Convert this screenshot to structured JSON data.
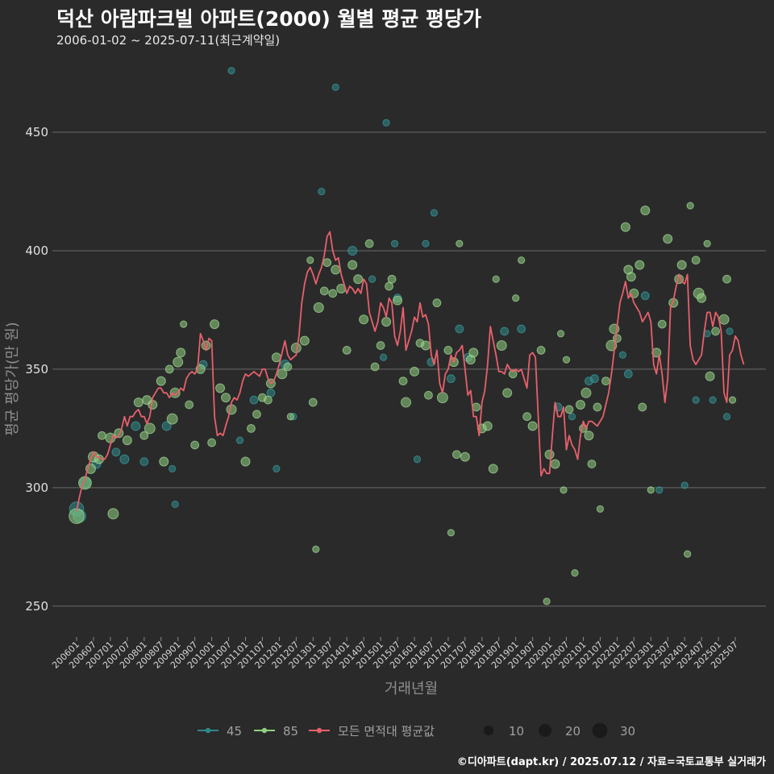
{
  "title": "덕산 아람파크빌 아파트(2000) 월별 평균 평당가",
  "subtitle": "2006-01-02 ~ 2025-07-11(최근계약일)",
  "caption": "©디아파트(dapt.kr) / 2025.07.12 / 자료=국토교통부 실거래가",
  "colors": {
    "background": "#2a2a2b",
    "series_45": "#2f8a8a",
    "series_85": "#8fd17f",
    "mean_line": "#e8606a",
    "size_legend": "#1a1a1a"
  },
  "chart_data": {
    "type": "scatter",
    "xlabel": "거래년월",
    "ylabel": "평균 평당가(만 원)",
    "ylim": [
      237,
      482
    ],
    "yticks": [
      250,
      300,
      350,
      400,
      450
    ],
    "x_range": [
      "2006-01",
      "2025-07"
    ],
    "xtick_labels": [
      "200601",
      "200607",
      "200701",
      "200707",
      "200801",
      "200807",
      "200901",
      "200907",
      "201001",
      "201007",
      "201101",
      "201107",
      "201201",
      "201207",
      "201301",
      "201307",
      "201401",
      "201407",
      "201501",
      "201507",
      "201601",
      "201607",
      "201701",
      "201707",
      "201801",
      "201807",
      "201901",
      "201907",
      "202001",
      "202007",
      "202101",
      "202107",
      "202201",
      "202207",
      "202301",
      "202307",
      "202401",
      "202407",
      "202501",
      "202507"
    ],
    "legend": {
      "series": [
        {
          "name": "45",
          "color": "#2f8a8a"
        },
        {
          "name": "85",
          "color": "#8fd17f"
        },
        {
          "name": "모든 면적대 평균값",
          "color": "#e8606a"
        }
      ],
      "sizes": [
        10,
        20,
        30
      ]
    },
    "mean_line": {
      "name": "모든 면적대 평균값",
      "start": "2006-01",
      "values": [
        290,
        296,
        301,
        304,
        308,
        312,
        315,
        313,
        313,
        312,
        312,
        314,
        318,
        322,
        321,
        322,
        325,
        330,
        326,
        330,
        330,
        332,
        333,
        330,
        330,
        327,
        330,
        338,
        340,
        342,
        342,
        340,
        340,
        338,
        340,
        339,
        340,
        342,
        341,
        346,
        348,
        349,
        348,
        350,
        365,
        362,
        358,
        363,
        362,
        330,
        322,
        323,
        322,
        326,
        330,
        336,
        338,
        337,
        340,
        345,
        348,
        347,
        348,
        349,
        348,
        347,
        350,
        350,
        346,
        344,
        345,
        348,
        352,
        357,
        362,
        356,
        354,
        355,
        356,
        364,
        378,
        386,
        391,
        393,
        390,
        386,
        390,
        393,
        398,
        406,
        408,
        400,
        396,
        397,
        390,
        386,
        382,
        385,
        384,
        382,
        384,
        382,
        388,
        386,
        374,
        370,
        366,
        370,
        378,
        376,
        372,
        380,
        378,
        364,
        360,
        366,
        376,
        358,
        362,
        366,
        372,
        370,
        378,
        372,
        373,
        369,
        356,
        352,
        358,
        344,
        340,
        348,
        350,
        356,
        353,
        357,
        358,
        360,
        350,
        339,
        341,
        330,
        330,
        322,
        336,
        341,
        352,
        368,
        362,
        356,
        349,
        349,
        348,
        352,
        350,
        349,
        350,
        349,
        350,
        346,
        342,
        356,
        357,
        355,
        330,
        305,
        308,
        306,
        306,
        322,
        336,
        330,
        330,
        334,
        316,
        322,
        318,
        316,
        312,
        322,
        328,
        325,
        328,
        328,
        327,
        326,
        328,
        330,
        335,
        340,
        348,
        358,
        368,
        378,
        382,
        387,
        380,
        382,
        378,
        376,
        374,
        370,
        372,
        374,
        370,
        352,
        348,
        356,
        348,
        336,
        346,
        376,
        379,
        385,
        390,
        387,
        386,
        390,
        360,
        354,
        352,
        354,
        356,
        366,
        374,
        374,
        368,
        374,
        372,
        366,
        340,
        336,
        356,
        358,
        364,
        362,
        356,
        352
      ]
    },
    "points_45": [
      {
        "x": "2006-01",
        "y": 291,
        "n": 12
      },
      {
        "x": "2006-02",
        "y": 288,
        "n": 9
      },
      {
        "x": "2006-04",
        "y": 302,
        "n": 5
      },
      {
        "x": "2006-08",
        "y": 310,
        "n": 3
      },
      {
        "x": "2007-03",
        "y": 315,
        "n": 2
      },
      {
        "x": "2007-06",
        "y": 312,
        "n": 3
      },
      {
        "x": "2007-10",
        "y": 326,
        "n": 3
      },
      {
        "x": "2008-01",
        "y": 311,
        "n": 2
      },
      {
        "x": "2008-09",
        "y": 326,
        "n": 3
      },
      {
        "x": "2008-11",
        "y": 308,
        "n": 1
      },
      {
        "x": "2008-12",
        "y": 293,
        "n": 1
      },
      {
        "x": "2009-10",
        "y": 352,
        "n": 2
      },
      {
        "x": "2010-08",
        "y": 476,
        "n": 1
      },
      {
        "x": "2010-11",
        "y": 320,
        "n": 1
      },
      {
        "x": "2011-04",
        "y": 337,
        "n": 2
      },
      {
        "x": "2011-10",
        "y": 340,
        "n": 2
      },
      {
        "x": "2011-12",
        "y": 308,
        "n": 1
      },
      {
        "x": "2012-03",
        "y": 352,
        "n": 3
      },
      {
        "x": "2012-06",
        "y": 330,
        "n": 1
      },
      {
        "x": "2013-04",
        "y": 425,
        "n": 1
      },
      {
        "x": "2013-09",
        "y": 469,
        "n": 1
      },
      {
        "x": "2014-03",
        "y": 400,
        "n": 3
      },
      {
        "x": "2014-10",
        "y": 388,
        "n": 1
      },
      {
        "x": "2015-02",
        "y": 355,
        "n": 1
      },
      {
        "x": "2015-03",
        "y": 454,
        "n": 1
      },
      {
        "x": "2015-06",
        "y": 403,
        "n": 1
      },
      {
        "x": "2015-07",
        "y": 380,
        "n": 2
      },
      {
        "x": "2016-02",
        "y": 312,
        "n": 1
      },
      {
        "x": "2016-05",
        "y": 403,
        "n": 1
      },
      {
        "x": "2016-07",
        "y": 353,
        "n": 2
      },
      {
        "x": "2016-08",
        "y": 416,
        "n": 1
      },
      {
        "x": "2017-02",
        "y": 346,
        "n": 2
      },
      {
        "x": "2017-05",
        "y": 367,
        "n": 2
      },
      {
        "x": "2017-08",
        "y": 355,
        "n": 2
      },
      {
        "x": "2018-09",
        "y": 366,
        "n": 2
      },
      {
        "x": "2019-03",
        "y": 367,
        "n": 2
      },
      {
        "x": "2020-04",
        "y": 334,
        "n": 2
      },
      {
        "x": "2020-09",
        "y": 330,
        "n": 1
      },
      {
        "x": "2021-03",
        "y": 345,
        "n": 2
      },
      {
        "x": "2021-05",
        "y": 346,
        "n": 2
      },
      {
        "x": "2022-03",
        "y": 356,
        "n": 1
      },
      {
        "x": "2022-05",
        "y": 348,
        "n": 2
      },
      {
        "x": "2022-11",
        "y": 381,
        "n": 2
      },
      {
        "x": "2023-04",
        "y": 299,
        "n": 1
      },
      {
        "x": "2024-01",
        "y": 301,
        "n": 1
      },
      {
        "x": "2024-05",
        "y": 337,
        "n": 1
      },
      {
        "x": "2024-09",
        "y": 365,
        "n": 1
      },
      {
        "x": "2024-11",
        "y": 337,
        "n": 1
      },
      {
        "x": "2025-04",
        "y": 330,
        "n": 1
      },
      {
        "x": "2025-05",
        "y": 366,
        "n": 1
      }
    ],
    "points_85": [
      {
        "x": "2006-01",
        "y": 288,
        "n": 14
      },
      {
        "x": "2006-04",
        "y": 302,
        "n": 9
      },
      {
        "x": "2006-06",
        "y": 308,
        "n": 4
      },
      {
        "x": "2006-07",
        "y": 313,
        "n": 5
      },
      {
        "x": "2006-09",
        "y": 312,
        "n": 3
      },
      {
        "x": "2006-10",
        "y": 322,
        "n": 2
      },
      {
        "x": "2007-01",
        "y": 321,
        "n": 4
      },
      {
        "x": "2007-02",
        "y": 289,
        "n": 5
      },
      {
        "x": "2007-04",
        "y": 323,
        "n": 3
      },
      {
        "x": "2007-07",
        "y": 320,
        "n": 3
      },
      {
        "x": "2007-11",
        "y": 336,
        "n": 3
      },
      {
        "x": "2008-01",
        "y": 322,
        "n": 2
      },
      {
        "x": "2008-02",
        "y": 337,
        "n": 3
      },
      {
        "x": "2008-03",
        "y": 325,
        "n": 5
      },
      {
        "x": "2008-04",
        "y": 335,
        "n": 3
      },
      {
        "x": "2008-07",
        "y": 345,
        "n": 3
      },
      {
        "x": "2008-08",
        "y": 311,
        "n": 3
      },
      {
        "x": "2008-10",
        "y": 350,
        "n": 2
      },
      {
        "x": "2008-11",
        "y": 329,
        "n": 5
      },
      {
        "x": "2008-12",
        "y": 340,
        "n": 4
      },
      {
        "x": "2009-01",
        "y": 353,
        "n": 4
      },
      {
        "x": "2009-02",
        "y": 357,
        "n": 3
      },
      {
        "x": "2009-03",
        "y": 369,
        "n": 1
      },
      {
        "x": "2009-05",
        "y": 335,
        "n": 2
      },
      {
        "x": "2009-07",
        "y": 318,
        "n": 2
      },
      {
        "x": "2009-09",
        "y": 350,
        "n": 3
      },
      {
        "x": "2009-11",
        "y": 360,
        "n": 3
      },
      {
        "x": "2010-01",
        "y": 319,
        "n": 2
      },
      {
        "x": "2010-02",
        "y": 369,
        "n": 3
      },
      {
        "x": "2010-04",
        "y": 342,
        "n": 3
      },
      {
        "x": "2010-06",
        "y": 338,
        "n": 3
      },
      {
        "x": "2010-08",
        "y": 333,
        "n": 4
      },
      {
        "x": "2011-01",
        "y": 311,
        "n": 3
      },
      {
        "x": "2011-03",
        "y": 325,
        "n": 2
      },
      {
        "x": "2011-05",
        "y": 331,
        "n": 2
      },
      {
        "x": "2011-07",
        "y": 338,
        "n": 2
      },
      {
        "x": "2011-09",
        "y": 337,
        "n": 2
      },
      {
        "x": "2011-10",
        "y": 344,
        "n": 3
      },
      {
        "x": "2011-12",
        "y": 355,
        "n": 3
      },
      {
        "x": "2012-02",
        "y": 348,
        "n": 4
      },
      {
        "x": "2012-04",
        "y": 351,
        "n": 2
      },
      {
        "x": "2012-05",
        "y": 330,
        "n": 1
      },
      {
        "x": "2012-07",
        "y": 359,
        "n": 4
      },
      {
        "x": "2012-10",
        "y": 362,
        "n": 3
      },
      {
        "x": "2012-12",
        "y": 396,
        "n": 1
      },
      {
        "x": "2013-01",
        "y": 336,
        "n": 2
      },
      {
        "x": "2013-02",
        "y": 274,
        "n": 1
      },
      {
        "x": "2013-03",
        "y": 376,
        "n": 4
      },
      {
        "x": "2013-05",
        "y": 383,
        "n": 2
      },
      {
        "x": "2013-06",
        "y": 395,
        "n": 2
      },
      {
        "x": "2013-08",
        "y": 382,
        "n": 2
      },
      {
        "x": "2013-09",
        "y": 392,
        "n": 3
      },
      {
        "x": "2013-11",
        "y": 384,
        "n": 3
      },
      {
        "x": "2014-01",
        "y": 358,
        "n": 2
      },
      {
        "x": "2014-03",
        "y": 394,
        "n": 3
      },
      {
        "x": "2014-05",
        "y": 388,
        "n": 3
      },
      {
        "x": "2014-07",
        "y": 371,
        "n": 3
      },
      {
        "x": "2014-09",
        "y": 403,
        "n": 2
      },
      {
        "x": "2014-11",
        "y": 351,
        "n": 2
      },
      {
        "x": "2015-01",
        "y": 360,
        "n": 2
      },
      {
        "x": "2015-03",
        "y": 370,
        "n": 3
      },
      {
        "x": "2015-04",
        "y": 385,
        "n": 2
      },
      {
        "x": "2015-05",
        "y": 388,
        "n": 2
      },
      {
        "x": "2015-07",
        "y": 379,
        "n": 3
      },
      {
        "x": "2015-09",
        "y": 345,
        "n": 2
      },
      {
        "x": "2015-10",
        "y": 336,
        "n": 4
      },
      {
        "x": "2016-01",
        "y": 349,
        "n": 3
      },
      {
        "x": "2016-03",
        "y": 361,
        "n": 2
      },
      {
        "x": "2016-05",
        "y": 360,
        "n": 3
      },
      {
        "x": "2016-06",
        "y": 339,
        "n": 2
      },
      {
        "x": "2016-09",
        "y": 378,
        "n": 2
      },
      {
        "x": "2016-11",
        "y": 338,
        "n": 5
      },
      {
        "x": "2017-01",
        "y": 358,
        "n": 2
      },
      {
        "x": "2017-02",
        "y": 281,
        "n": 1
      },
      {
        "x": "2017-03",
        "y": 353,
        "n": 3
      },
      {
        "x": "2017-04",
        "y": 314,
        "n": 2
      },
      {
        "x": "2017-05",
        "y": 403,
        "n": 1
      },
      {
        "x": "2017-07",
        "y": 313,
        "n": 3
      },
      {
        "x": "2017-09",
        "y": 354,
        "n": 3
      },
      {
        "x": "2017-10",
        "y": 357,
        "n": 3
      },
      {
        "x": "2017-11",
        "y": 334,
        "n": 2
      },
      {
        "x": "2018-01",
        "y": 325,
        "n": 3
      },
      {
        "x": "2018-03",
        "y": 326,
        "n": 3
      },
      {
        "x": "2018-05",
        "y": 308,
        "n": 3
      },
      {
        "x": "2018-06",
        "y": 388,
        "n": 1
      },
      {
        "x": "2018-08",
        "y": 360,
        "n": 4
      },
      {
        "x": "2018-10",
        "y": 340,
        "n": 3
      },
      {
        "x": "2018-12",
        "y": 348,
        "n": 2
      },
      {
        "x": "2019-01",
        "y": 380,
        "n": 1
      },
      {
        "x": "2019-03",
        "y": 396,
        "n": 1
      },
      {
        "x": "2019-05",
        "y": 330,
        "n": 2
      },
      {
        "x": "2019-07",
        "y": 326,
        "n": 3
      },
      {
        "x": "2019-10",
        "y": 358,
        "n": 2
      },
      {
        "x": "2019-12",
        "y": 252,
        "n": 1
      },
      {
        "x": "2020-01",
        "y": 314,
        "n": 3
      },
      {
        "x": "2020-03",
        "y": 310,
        "n": 3
      },
      {
        "x": "2020-05",
        "y": 365,
        "n": 1
      },
      {
        "x": "2020-06",
        "y": 299,
        "n": 1
      },
      {
        "x": "2020-07",
        "y": 354,
        "n": 1
      },
      {
        "x": "2020-08",
        "y": 333,
        "n": 2
      },
      {
        "x": "2020-10",
        "y": 264,
        "n": 1
      },
      {
        "x": "2020-12",
        "y": 335,
        "n": 3
      },
      {
        "x": "2021-01",
        "y": 325,
        "n": 2
      },
      {
        "x": "2021-02",
        "y": 340,
        "n": 4
      },
      {
        "x": "2021-03",
        "y": 322,
        "n": 3
      },
      {
        "x": "2021-04",
        "y": 310,
        "n": 2
      },
      {
        "x": "2021-06",
        "y": 334,
        "n": 2
      },
      {
        "x": "2021-07",
        "y": 291,
        "n": 1
      },
      {
        "x": "2021-09",
        "y": 345,
        "n": 2
      },
      {
        "x": "2021-11",
        "y": 360,
        "n": 5
      },
      {
        "x": "2021-12",
        "y": 367,
        "n": 4
      },
      {
        "x": "2022-01",
        "y": 363,
        "n": 2
      },
      {
        "x": "2022-04",
        "y": 410,
        "n": 3
      },
      {
        "x": "2022-05",
        "y": 392,
        "n": 3
      },
      {
        "x": "2022-06",
        "y": 389,
        "n": 3
      },
      {
        "x": "2022-07",
        "y": 382,
        "n": 3
      },
      {
        "x": "2022-09",
        "y": 394,
        "n": 3
      },
      {
        "x": "2022-10",
        "y": 334,
        "n": 2
      },
      {
        "x": "2022-11",
        "y": 417,
        "n": 3
      },
      {
        "x": "2023-01",
        "y": 299,
        "n": 1
      },
      {
        "x": "2023-03",
        "y": 357,
        "n": 3
      },
      {
        "x": "2023-05",
        "y": 369,
        "n": 2
      },
      {
        "x": "2023-07",
        "y": 405,
        "n": 3
      },
      {
        "x": "2023-09",
        "y": 378,
        "n": 3
      },
      {
        "x": "2023-11",
        "y": 388,
        "n": 3
      },
      {
        "x": "2023-12",
        "y": 394,
        "n": 3
      },
      {
        "x": "2024-02",
        "y": 272,
        "n": 1
      },
      {
        "x": "2024-03",
        "y": 419,
        "n": 1
      },
      {
        "x": "2024-05",
        "y": 396,
        "n": 2
      },
      {
        "x": "2024-06",
        "y": 382,
        "n": 5
      },
      {
        "x": "2024-07",
        "y": 380,
        "n": 3
      },
      {
        "x": "2024-09",
        "y": 403,
        "n": 1
      },
      {
        "x": "2024-10",
        "y": 347,
        "n": 3
      },
      {
        "x": "2024-12",
        "y": 366,
        "n": 2
      },
      {
        "x": "2025-03",
        "y": 371,
        "n": 4
      },
      {
        "x": "2025-04",
        "y": 388,
        "n": 2
      },
      {
        "x": "2025-06",
        "y": 337,
        "n": 1
      }
    ]
  }
}
